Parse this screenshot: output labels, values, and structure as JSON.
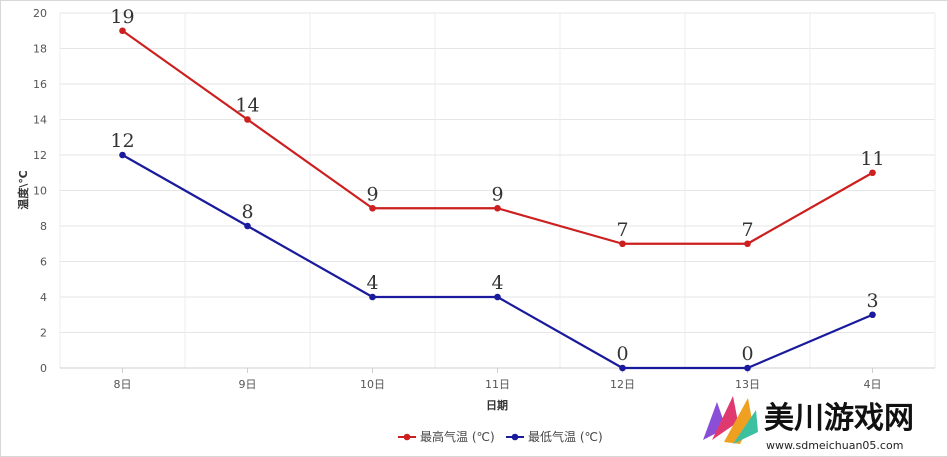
{
  "chart_data": {
    "type": "line",
    "title": "",
    "xlabel": "日期",
    "ylabel": "温度\\℃",
    "categories": [
      "8日",
      "9日",
      "10日",
      "11日",
      "12日",
      "13日",
      "4日"
    ],
    "ylim": [
      0,
      20
    ],
    "yticks": [
      0,
      2,
      4,
      6,
      8,
      10,
      12,
      14,
      16,
      18,
      20
    ],
    "grid": true,
    "legend_position": "bottom-center",
    "series": [
      {
        "name": "最高气温 (℃)",
        "color": "#cc1f1f",
        "values": [
          19,
          14,
          9,
          9,
          7,
          7,
          11
        ]
      },
      {
        "name": "最低气温 (℃)",
        "color": "#1a1a9c",
        "values": [
          12,
          8,
          4,
          4,
          0,
          0,
          3
        ]
      }
    ]
  },
  "watermark": {
    "text": "美川游戏网",
    "url": "www.sdmeichuan05.com"
  }
}
